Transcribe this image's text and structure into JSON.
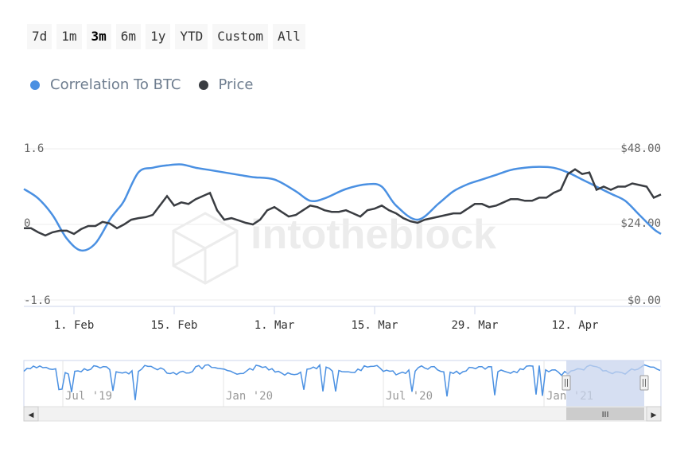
{
  "range_selector": {
    "buttons": [
      "7d",
      "1m",
      "3m",
      "6m",
      "1y",
      "YTD",
      "Custom",
      "All"
    ],
    "active": "3m"
  },
  "legend": {
    "correlation_label": "Correlation To BTC",
    "price_label": "Price"
  },
  "watermark": "intotheblock",
  "colors": {
    "correlation": "#4a90e2",
    "price": "#3a3d42",
    "navigator_mask": "#c8d4ee"
  },
  "chart_data": {
    "type": "line",
    "x_ticks": [
      "1. Feb",
      "15. Feb",
      "1. Mar",
      "15. Mar",
      "29. Mar",
      "12. Apr"
    ],
    "left_axis": {
      "ticks": [
        "1.6",
        "0",
        "-1.6"
      ],
      "range": [
        -1.6,
        1.6
      ]
    },
    "right_axis": {
      "ticks": [
        "$48.00",
        "$24.00",
        "$0.00"
      ],
      "range": [
        0,
        48
      ]
    },
    "grid": true,
    "legend_position": "top-left",
    "x_range_days": [
      0,
      89
    ],
    "series": [
      {
        "name": "Correlation To BTC",
        "axis": "left",
        "x": [
          0,
          2,
          4,
          6,
          8,
          10,
          12,
          13,
          14,
          16,
          18,
          20,
          22,
          24,
          26,
          28,
          30,
          32,
          35,
          38,
          40,
          42,
          45,
          48,
          50,
          52,
          55,
          58,
          60,
          62,
          64,
          66,
          68,
          70,
          72,
          74,
          76,
          78,
          80,
          82,
          84,
          86,
          88,
          89
        ],
        "y": [
          0.75,
          0.55,
          0.2,
          -0.3,
          -0.55,
          -0.4,
          0.1,
          0.3,
          0.5,
          1.1,
          1.2,
          1.25,
          1.27,
          1.2,
          1.15,
          1.1,
          1.05,
          1.0,
          0.95,
          0.7,
          0.5,
          0.55,
          0.75,
          0.85,
          0.8,
          0.4,
          0.1,
          0.45,
          0.7,
          0.85,
          0.95,
          1.05,
          1.15,
          1.2,
          1.22,
          1.2,
          1.1,
          0.95,
          0.8,
          0.65,
          0.5,
          0.2,
          -0.1,
          -0.2
        ]
      },
      {
        "name": "Price",
        "axis": "right",
        "x": [
          0,
          1,
          2,
          3,
          4,
          5,
          6,
          7,
          8,
          9,
          10,
          11,
          12,
          13,
          14,
          15,
          16,
          17,
          18,
          19,
          20,
          21,
          22,
          23,
          24,
          25,
          26,
          27,
          28,
          29,
          30,
          31,
          32,
          33,
          34,
          35,
          36,
          37,
          38,
          39,
          40,
          41,
          42,
          43,
          44,
          45,
          46,
          47,
          48,
          49,
          50,
          51,
          52,
          53,
          54,
          55,
          56,
          57,
          58,
          59,
          60,
          61,
          62,
          63,
          64,
          65,
          66,
          67,
          68,
          69,
          70,
          71,
          72,
          73,
          74,
          75,
          76,
          77,
          78,
          79,
          80,
          81,
          82,
          83,
          84,
          85,
          86,
          87,
          88,
          89
        ],
        "y": [
          22.8,
          22.8,
          21.5,
          20.5,
          21.5,
          22,
          22,
          21,
          22.5,
          23.5,
          23.5,
          24.8,
          24.3,
          22.8,
          24,
          25.5,
          26,
          26.3,
          27,
          30,
          33,
          30,
          31,
          30.5,
          32,
          33,
          34,
          28.5,
          25.5,
          26,
          25.3,
          24.5,
          24,
          25.5,
          28.5,
          29.5,
          28,
          26.5,
          27,
          28.5,
          30,
          29.5,
          28.5,
          28,
          28,
          28.5,
          27.5,
          26.5,
          28.5,
          29,
          30,
          28.5,
          27.5,
          26,
          25,
          24.5,
          25.5,
          26,
          26.5,
          27,
          27.5,
          27.5,
          29,
          30.5,
          30.5,
          29.5,
          30,
          31,
          32,
          32,
          31.5,
          31.5,
          32.5,
          32.5,
          34,
          35,
          40,
          41.5,
          40,
          40.5,
          35,
          36,
          35,
          36,
          36,
          37,
          36.5,
          36,
          32.5,
          33.5
        ]
      }
    ]
  },
  "navigator": {
    "ticks": [
      "Jul '19",
      "Jan '20",
      "Jul '20",
      "Jan '21"
    ],
    "scroll_thumb": "III",
    "scroll_left_arrow": "◀",
    "scroll_right_arrow": "▶"
  }
}
